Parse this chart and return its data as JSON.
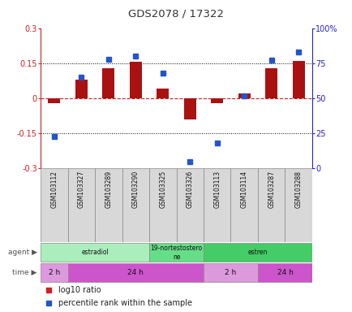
{
  "title": "GDS2078 / 17322",
  "samples": [
    "GSM103112",
    "GSM103327",
    "GSM103289",
    "GSM103290",
    "GSM103325",
    "GSM103326",
    "GSM103113",
    "GSM103114",
    "GSM103287",
    "GSM103288"
  ],
  "log10_ratio": [
    -0.02,
    0.08,
    0.13,
    0.155,
    0.04,
    -0.09,
    -0.02,
    0.02,
    0.13,
    0.16
  ],
  "percentile_rank": [
    23,
    65,
    78,
    80,
    68,
    5,
    18,
    52,
    77,
    83
  ],
  "ylim_left": [
    -0.3,
    0.3
  ],
  "ylim_right": [
    0,
    100
  ],
  "yticks_left": [
    -0.3,
    -0.15,
    0,
    0.15,
    0.3
  ],
  "yticks_right": [
    0,
    25,
    50,
    75,
    100
  ],
  "hlines": [
    -0.15,
    0,
    0.15
  ],
  "bar_color": "#aa1111",
  "dot_color": "#2255cc",
  "agent_groups": [
    {
      "label": "estradiol",
      "start": 0,
      "end": 4,
      "color": "#aaeebb"
    },
    {
      "label": "19-nortestostero\nne",
      "start": 4,
      "end": 6,
      "color": "#66dd88"
    },
    {
      "label": "estren",
      "start": 6,
      "end": 10,
      "color": "#44cc66"
    }
  ],
  "time_groups": [
    {
      "label": "2 h",
      "start": 0,
      "end": 1,
      "color": "#dd99dd"
    },
    {
      "label": "24 h",
      "start": 1,
      "end": 6,
      "color": "#cc55cc"
    },
    {
      "label": "2 h",
      "start": 6,
      "end": 8,
      "color": "#dd99dd"
    },
    {
      "label": "24 h",
      "start": 8,
      "end": 10,
      "color": "#cc55cc"
    }
  ],
  "legend_bar_color": "#cc2222",
  "legend_dot_color": "#2255cc",
  "bg_color": "#ffffff",
  "plot_bg_color": "#ffffff",
  "label_color_left": "#cc2222",
  "label_color_right": "#2222cc",
  "grid_color": "#000000",
  "zero_line_color": "#cc2222",
  "cell_bg": "#d8d8d8",
  "cell_edge": "#888888"
}
